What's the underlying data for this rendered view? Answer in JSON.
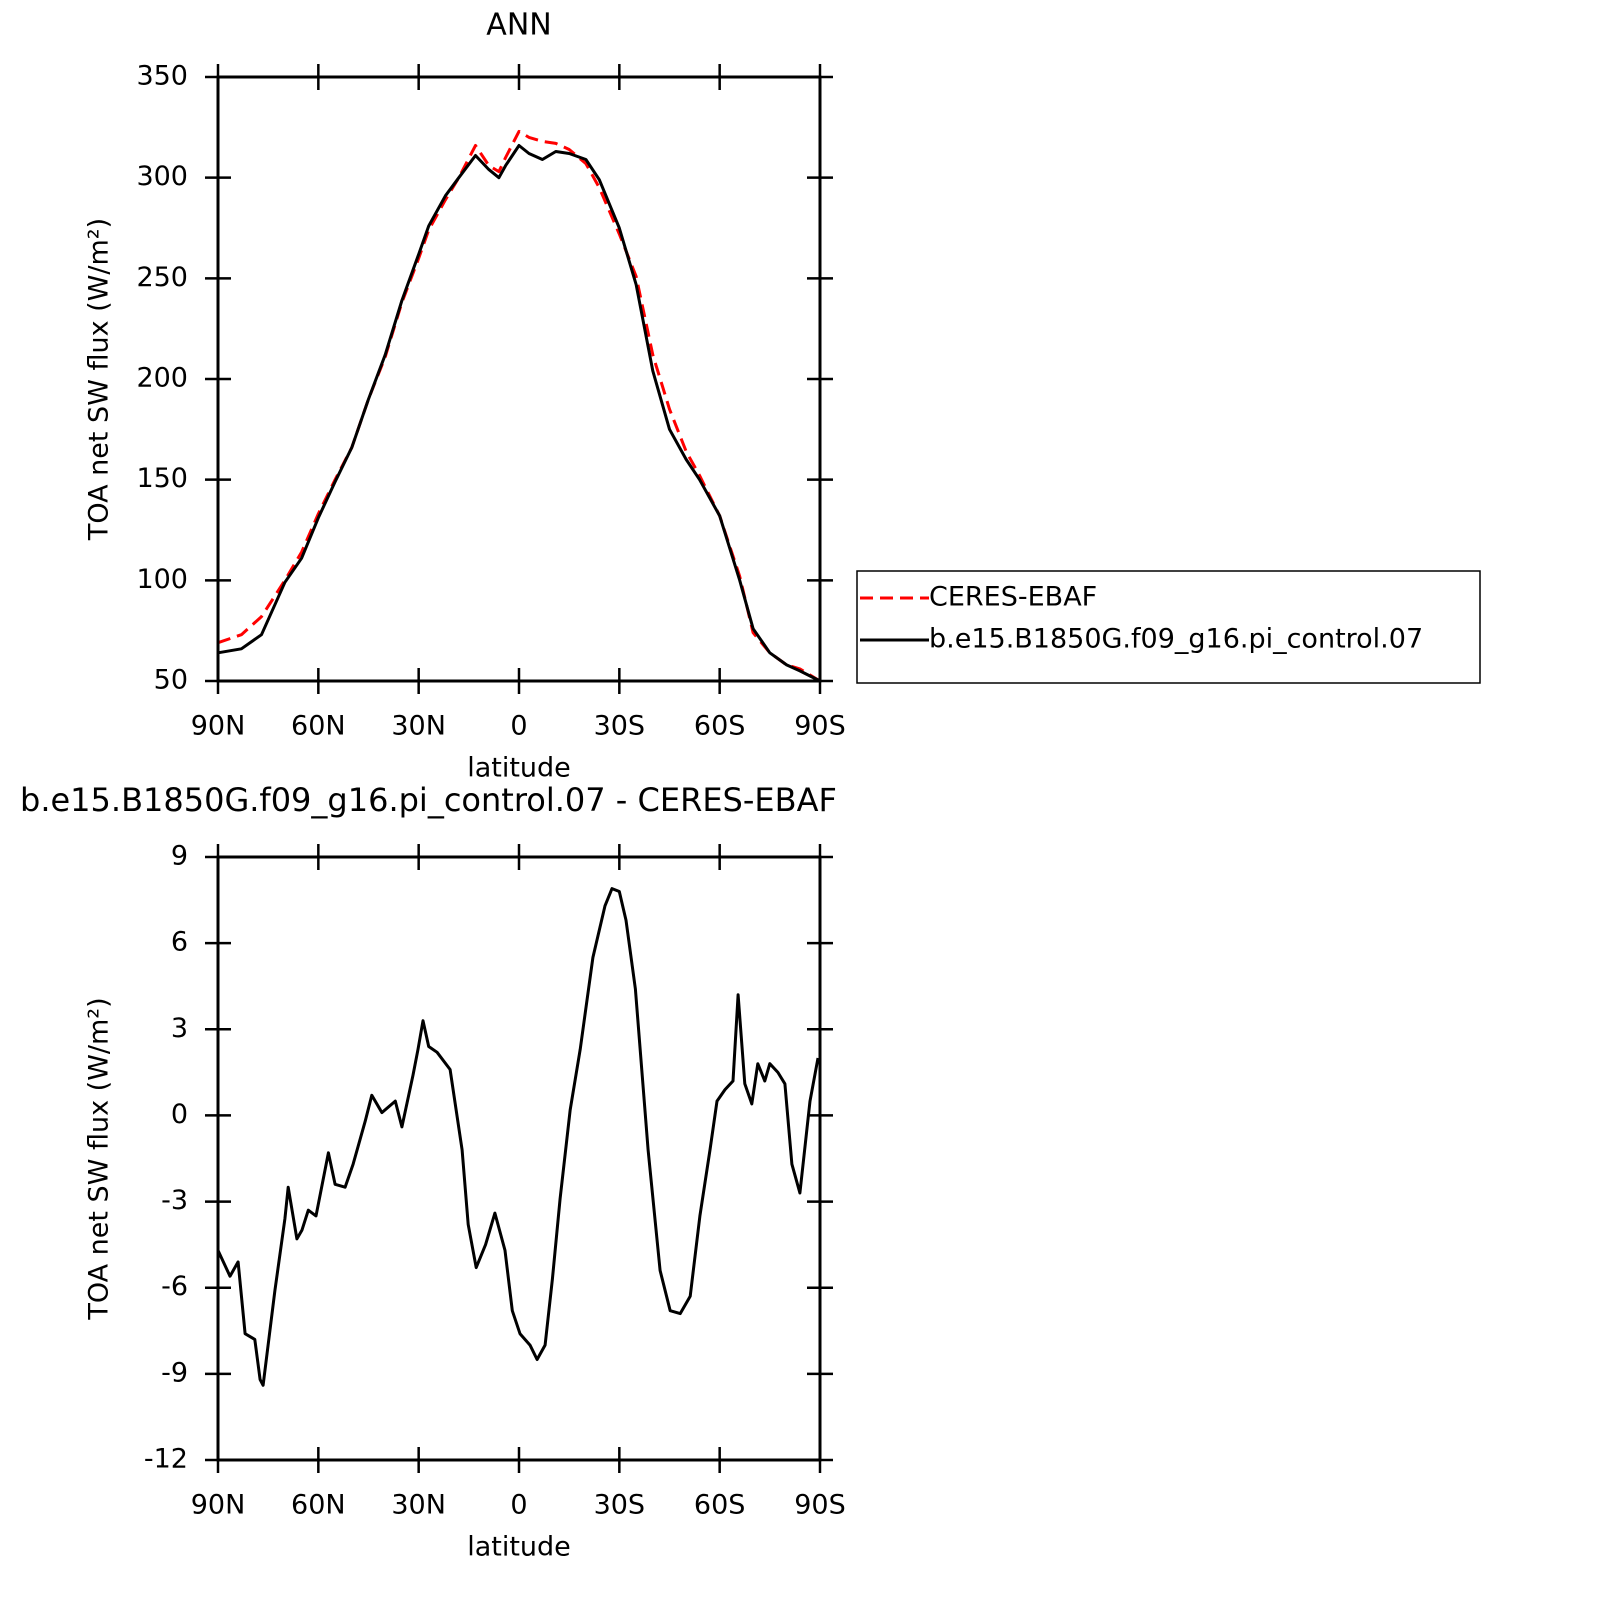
{
  "chart_data": [
    {
      "type": "line",
      "title": "ANN",
      "xlabel": "latitude",
      "ylabel": "TOA net SW flux (W/m²)",
      "xlim": [
        90,
        -90
      ],
      "xticks": [
        {
          "value": 90,
          "label": "90N"
        },
        {
          "value": 60,
          "label": "60N"
        },
        {
          "value": 30,
          "label": "30N"
        },
        0,
        {
          "value": -30,
          "label": "30S"
        },
        {
          "value": -60,
          "label": "60S"
        },
        {
          "value": -90,
          "label": "90S"
        }
      ],
      "ylim": [
        50,
        350
      ],
      "yticks": [
        50,
        100,
        150,
        200,
        250,
        300,
        350
      ],
      "legend": "right",
      "x": [
        90,
        83,
        77,
        70,
        65,
        60,
        55,
        50,
        45,
        40,
        35,
        30,
        27,
        22,
        18,
        13,
        9,
        6,
        4,
        0,
        -3,
        -7,
        -11,
        -15,
        -20,
        -24,
        -30,
        -35,
        -40,
        -45,
        -50,
        -54,
        -60,
        -66,
        -70,
        -75,
        -80,
        -84,
        -90
      ],
      "series": [
        {
          "name": "CERES-EBAF",
          "color": "#ff0000",
          "dash": true,
          "values": [
            69,
            73,
            82,
            100,
            114,
            133,
            150,
            166,
            190,
            211,
            238,
            260,
            274,
            289,
            300,
            316,
            306,
            303,
            310,
            323,
            320,
            318,
            317,
            314,
            307,
            295,
            272,
            251,
            212,
            185,
            164,
            152,
            132,
            102,
            74,
            64,
            58,
            56,
            50
          ]
        },
        {
          "name": "b.e15.B1850G.f09_g16.pi_control.07",
          "color": "#000000",
          "dash": false,
          "values": [
            64,
            66,
            73,
            99,
            111,
            131,
            149,
            166,
            190,
            212,
            239,
            262,
            276,
            291,
            300,
            311,
            304,
            300,
            306,
            316,
            312,
            309,
            313,
            312,
            309,
            299,
            275,
            247,
            204,
            175,
            160,
            150,
            132,
            100,
            76,
            64,
            58,
            55,
            50
          ]
        }
      ]
    },
    {
      "type": "line",
      "title": "b.e15.B1850G.f09_g16.pi_control.07 - CERES-EBAF",
      "xlabel": "latitude",
      "ylabel": "TOA net SW flux (W/m²)",
      "xlim": [
        90,
        -90
      ],
      "xticks": [
        {
          "value": 90,
          "label": "90N"
        },
        {
          "value": 60,
          "label": "60N"
        },
        {
          "value": 30,
          "label": "30N"
        },
        0,
        {
          "value": -30,
          "label": "30S"
        },
        {
          "value": -60,
          "label": "60S"
        },
        {
          "value": -90,
          "label": "90S"
        }
      ],
      "ylim": [
        -12,
        9
      ],
      "yticks": [
        -12,
        -9,
        -6,
        -3,
        0,
        3,
        6,
        9
      ],
      "x": [
        90,
        86.4,
        84,
        81.9,
        79,
        77.4,
        76.5,
        73,
        70,
        69,
        66.4,
        64.9,
        63,
        60.7,
        57,
        55,
        52,
        49.6,
        46,
        44,
        41,
        37,
        35,
        31.7,
        30.2,
        28.7,
        27,
        24.5,
        20.6,
        17,
        15.2,
        12.8,
        10,
        7.2,
        4.2,
        2,
        -0.3,
        -3.3,
        -5.4,
        -7.8,
        -10,
        -12.3,
        -15.3,
        -18.3,
        -22.1,
        -25.7,
        -27.8,
        -30,
        -32,
        -34.8,
        -38.6,
        -42.2,
        -45.2,
        -48.2,
        -51.2,
        -54.1,
        -57.1,
        -59.2,
        -61.6,
        -64,
        -65.5,
        -67.5,
        -69.6,
        -71.4,
        -73.5,
        -75,
        -77.4,
        -79.5,
        -81.6,
        -84,
        -87,
        -89.4
      ],
      "series": [
        {
          "name": "b.e15.B1850G.f09_g16.pi_control.07 - CERES-EBAF",
          "color": "#000000",
          "dash": false,
          "values": [
            -4.7,
            -5.6,
            -5.1,
            -7.6,
            -7.8,
            -9.2,
            -9.4,
            -6.1,
            -3.6,
            -2.5,
            -4.3,
            -4.0,
            -3.3,
            -3.5,
            -1.3,
            -2.4,
            -2.5,
            -1.7,
            -0.2,
            0.7,
            0.1,
            0.5,
            -0.4,
            1.4,
            2.3,
            3.3,
            2.4,
            2.2,
            1.6,
            -1.2,
            -3.8,
            -5.3,
            -4.5,
            -3.4,
            -4.7,
            -6.8,
            -7.6,
            -8.0,
            -8.5,
            -8.0,
            -5.7,
            -2.9,
            0.2,
            2.3,
            5.5,
            7.3,
            7.9,
            7.8,
            6.8,
            4.4,
            -1.2,
            -5.4,
            -6.8,
            -6.9,
            -6.3,
            -3.5,
            -1.2,
            0.5,
            0.9,
            1.2,
            4.2,
            1.1,
            0.4,
            1.8,
            1.2,
            1.8,
            1.5,
            1.1,
            -1.7,
            -2.7,
            0.5,
            2.0
          ]
        }
      ]
    }
  ]
}
